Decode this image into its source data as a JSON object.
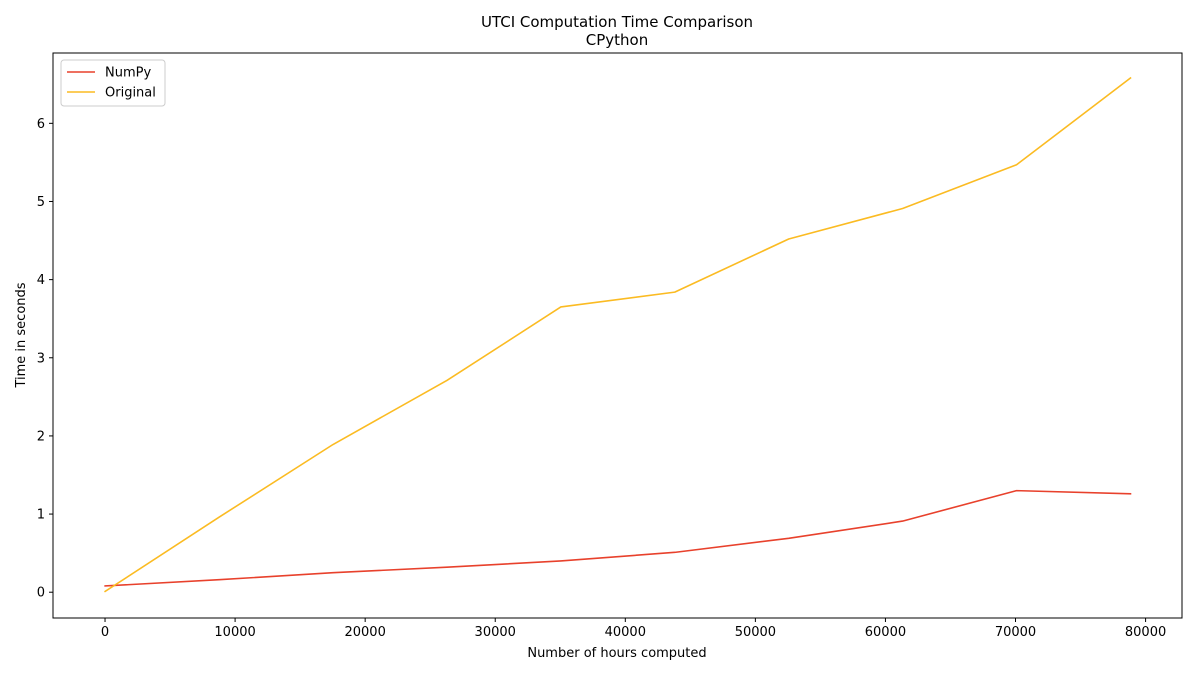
{
  "chart_data": {
    "type": "line",
    "title": "UTCI Computation Time Comparison",
    "subtitle": "CPython",
    "xlabel": "Number of hours computed",
    "ylabel": "Time in seconds",
    "xlim": [
      -4000,
      82800
    ],
    "ylim": [
      -0.33,
      6.9
    ],
    "xticks": [
      0,
      10000,
      20000,
      30000,
      40000,
      50000,
      60000,
      70000,
      80000
    ],
    "yticks": [
      0,
      1,
      2,
      3,
      4,
      5,
      6
    ],
    "grid": false,
    "legend_position": "top-left",
    "series": [
      {
        "name": "NumPy",
        "color": "#e8412c",
        "x": [
          8,
          8767,
          17526,
          26285,
          35044,
          43803,
          52562,
          61321,
          70080,
          78839
        ],
        "y": [
          0.08,
          0.16,
          0.25,
          0.32,
          0.4,
          0.51,
          0.69,
          0.91,
          1.3,
          1.26
        ]
      },
      {
        "name": "Original",
        "color": "#fbbb22",
        "x": [
          8,
          8767,
          17526,
          26285,
          35044,
          43803,
          52562,
          61321,
          70080,
          78839
        ],
        "y": [
          0.01,
          0.96,
          1.89,
          2.71,
          3.65,
          3.84,
          4.52,
          4.91,
          5.47,
          6.58
        ]
      }
    ]
  }
}
